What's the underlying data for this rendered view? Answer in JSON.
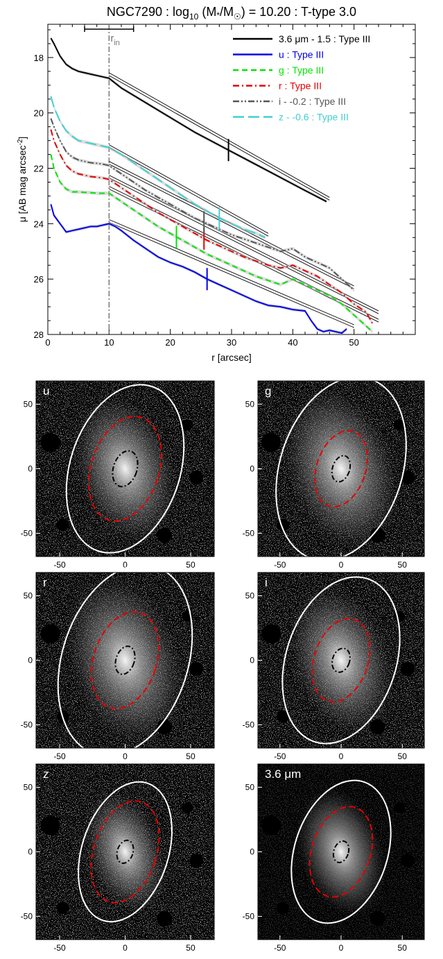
{
  "profile": {
    "title_prefix": "NGC7290 : log",
    "title_sub": "10",
    "title_mid": " (M",
    "title_star": "*",
    "title_over": "/M",
    "title_sun": "☉",
    "title_suffix": ") = 10.20 : T-type 3.0",
    "xlabel": "r [arcsec]",
    "ylabel": "μ [AB mag arcsec",
    "ylabel_sup": "-2",
    "ylabel_end": "]",
    "rin_label": "r",
    "rin_sub": "in"
  },
  "legend": [
    {
      "label": "3.6 μm - 1.5 : Type III",
      "color": "#000000",
      "dash": "solid"
    },
    {
      "label": "u : Type III",
      "color": "#0000e6",
      "dash": "solid"
    },
    {
      "label": "g : Type III",
      "color": "#00e600",
      "dash": "dash"
    },
    {
      "label": "r : Type III",
      "color": "#e60000",
      "dash": "dashdot"
    },
    {
      "label": "i - -0.2 : Type III",
      "color": "#555555",
      "dash": "dashdotdot"
    },
    {
      "label": "z - -0.6 : Type III",
      "color": "#40d0d0",
      "dash": "longdash"
    }
  ],
  "chart_data": [
    {
      "type": "line",
      "xlim": [
        0,
        60
      ],
      "ylim": [
        28,
        16.8
      ],
      "xticks": [
        0,
        10,
        20,
        30,
        40,
        50
      ],
      "yticks": [
        18,
        20,
        22,
        24,
        26,
        28
      ],
      "r_in": 10,
      "r_in_range": [
        6,
        14
      ],
      "series": [
        {
          "name": "3.6 μm - 1.5 : Type III",
          "color": "#000000",
          "dash": "solid",
          "x": [
            0.5,
            1,
            2,
            3,
            4,
            5,
            6,
            7,
            8,
            9,
            10,
            12,
            15,
            18,
            21,
            24,
            27,
            30,
            33,
            36,
            39,
            42,
            45.5
          ],
          "y": [
            17.3,
            17.5,
            17.95,
            18.25,
            18.4,
            18.5,
            18.55,
            18.6,
            18.65,
            18.7,
            18.75,
            19.1,
            19.5,
            19.9,
            20.3,
            20.7,
            21.05,
            21.4,
            21.75,
            22.1,
            22.45,
            22.8,
            23.2
          ],
          "fit": {
            "x": [
              10,
              46
            ],
            "y": [
              18.6,
              23.1
            ]
          },
          "break_marker": 29.5
        },
        {
          "name": "u : Type III",
          "color": "#0000e6",
          "dash": "solid",
          "x": [
            0.5,
            1,
            2,
            3,
            4,
            5,
            6,
            7,
            8,
            9,
            10,
            11,
            12,
            14,
            16,
            18,
            20,
            22,
            24,
            26,
            28,
            30,
            32,
            34,
            36,
            38,
            40,
            42,
            43,
            44,
            45,
            46,
            47,
            48,
            48.8
          ],
          "y": [
            23.3,
            23.7,
            24.0,
            24.3,
            24.25,
            24.2,
            24.15,
            24.1,
            24.1,
            24.05,
            24.0,
            24.1,
            24.25,
            24.6,
            24.9,
            25.2,
            25.4,
            25.55,
            25.75,
            26.0,
            26.2,
            26.4,
            26.6,
            26.8,
            26.95,
            27.0,
            27.1,
            27.15,
            27.5,
            27.8,
            27.9,
            27.85,
            27.9,
            27.95,
            27.8
          ],
          "fit": {
            "x": [
              10,
              50
            ],
            "y": [
              23.9,
              27.7
            ]
          },
          "break_marker": 26
        },
        {
          "name": "g : Type III",
          "color": "#00e600",
          "dash": "dash",
          "x": [
            0.5,
            1,
            2,
            3,
            4,
            5,
            6,
            7,
            8,
            9,
            10,
            12,
            14,
            16,
            18,
            20,
            22,
            24,
            26,
            28,
            30,
            32,
            34,
            36,
            38,
            40,
            42,
            44,
            46,
            48,
            50,
            52,
            53
          ],
          "y": [
            21.5,
            22.0,
            22.5,
            22.75,
            22.85,
            22.85,
            22.87,
            22.88,
            22.9,
            22.9,
            22.9,
            23.2,
            23.5,
            23.8,
            24.1,
            24.35,
            24.6,
            24.85,
            25.1,
            25.3,
            25.5,
            25.7,
            25.9,
            26.05,
            26.2,
            26.0,
            26.2,
            26.4,
            26.6,
            26.9,
            27.3,
            27.7,
            27.9
          ],
          "fit": {
            "x": [
              10,
              54
            ],
            "y": [
              22.7,
              27.5
            ]
          },
          "break_marker": 21
        },
        {
          "name": "r : Type III",
          "color": "#e60000",
          "dash": "dashdot",
          "x": [
            0.5,
            1,
            2,
            3,
            4,
            5,
            6,
            7,
            8,
            9,
            10,
            12,
            14,
            16,
            18,
            20,
            22,
            24,
            26,
            28,
            30,
            32,
            34,
            36,
            38,
            40,
            42,
            44,
            46,
            48,
            50,
            52,
            53
          ],
          "y": [
            20.6,
            21.0,
            21.5,
            21.9,
            22.1,
            22.2,
            22.25,
            22.3,
            22.32,
            22.35,
            22.4,
            22.7,
            23.0,
            23.3,
            23.6,
            23.85,
            24.1,
            24.35,
            24.6,
            24.8,
            25.0,
            25.2,
            25.35,
            25.5,
            25.6,
            25.5,
            25.7,
            25.9,
            26.2,
            26.5,
            26.9,
            27.2,
            27.6
          ],
          "fit": {
            "x": [
              10,
              54
            ],
            "y": [
              22.3,
              27.2
            ]
          },
          "break_marker": 25.5
        },
        {
          "name": "i - -0.2 : Type III",
          "color": "#555555",
          "dash": "dashdotdot",
          "x": [
            0.5,
            1,
            2,
            3,
            4,
            5,
            6,
            7,
            8,
            9,
            10,
            12,
            14,
            16,
            18,
            20,
            22,
            24,
            26,
            28,
            30,
            32,
            34,
            36,
            38,
            40,
            42,
            44,
            46,
            48,
            50
          ],
          "y": [
            20.2,
            20.5,
            21.0,
            21.4,
            21.6,
            21.7,
            21.75,
            21.8,
            21.82,
            21.85,
            21.9,
            22.2,
            22.5,
            22.8,
            23.05,
            23.3,
            23.55,
            23.8,
            24.0,
            24.2,
            24.4,
            24.55,
            24.7,
            24.85,
            25.0,
            24.9,
            25.2,
            25.4,
            25.6,
            26.0,
            26.4
          ],
          "fit": {
            "x": [
              10,
              50
            ],
            "y": [
              21.8,
              26.3
            ]
          },
          "break_marker": 25.5
        },
        {
          "name": "z - -0.6 : Type III",
          "color": "#40d0d0",
          "dash": "longdash",
          "x": [
            0.5,
            1,
            2,
            3,
            4,
            5,
            6,
            7,
            8,
            9,
            10,
            12,
            14,
            16,
            18,
            20,
            22,
            24,
            26,
            28,
            30,
            32,
            34,
            35.5
          ],
          "y": [
            19.4,
            19.8,
            20.3,
            20.65,
            20.85,
            21.0,
            21.05,
            21.1,
            21.15,
            21.2,
            21.25,
            21.5,
            21.8,
            22.1,
            22.4,
            22.7,
            23.0,
            23.3,
            23.55,
            23.8,
            24.0,
            24.2,
            24.35,
            24.5
          ],
          "fit": {
            "x": [
              10,
              36
            ],
            "y": [
              21.2,
              24.4
            ]
          },
          "break_marker": 28
        }
      ]
    },
    {
      "type": "image_grid",
      "panels": [
        {
          "label": "u",
          "outer": [
            42,
            66
          ],
          "mid": [
            26,
            41
          ],
          "inner": [
            9,
            14
          ],
          "tilt": -18
        },
        {
          "label": "g",
          "outer": [
            50,
            77
          ],
          "mid": [
            20,
            32
          ],
          "inner": [
            7,
            11
          ],
          "tilt": -18
        },
        {
          "label": "r",
          "outer": [
            48,
            75
          ],
          "mid": [
            24,
            38
          ],
          "inner": [
            7,
            11
          ],
          "tilt": -18
        },
        {
          "label": "i",
          "outer": [
            45,
            70
          ],
          "mid": [
            22,
            35
          ],
          "inner": [
            7,
            10
          ],
          "tilt": -18
        },
        {
          "label": "z",
          "outer": [
            33,
            55
          ],
          "mid": [
            24,
            40
          ],
          "inner": [
            6,
            9
          ],
          "tilt": -18
        },
        {
          "label": "3.6 μm",
          "outer": [
            38,
            60
          ],
          "mid": [
            24,
            38
          ],
          "inner": [
            6,
            9
          ],
          "tilt": -18
        }
      ],
      "xticks": [
        -50,
        0,
        50
      ],
      "yticks": [
        50,
        0,
        -50
      ],
      "axis_range": [
        -68,
        68
      ]
    }
  ]
}
